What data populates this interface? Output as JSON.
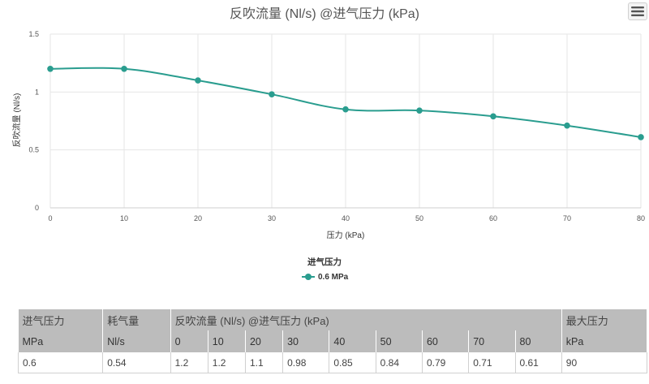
{
  "chart_data": {
    "type": "line",
    "title": "反吹流量 (Nl/s) @进气压力 (kPa)",
    "xlabel": "压力 (kPa)",
    "ylabel": "反吹流量 (Nl/s)",
    "x_ticks": [
      "0",
      "10",
      "20",
      "30",
      "40",
      "50",
      "60",
      "70",
      "80"
    ],
    "y_ticks": [
      "0",
      "0.5",
      "1",
      "1.5"
    ],
    "xlim": [
      0,
      80
    ],
    "ylim": [
      0,
      1.5
    ],
    "grid": true,
    "legend_title": "进气压力",
    "legend_position": "bottom-center",
    "series": [
      {
        "name": "0.6 MPa",
        "color": "#2a9d8f",
        "x": [
          0,
          10,
          20,
          30,
          40,
          50,
          60,
          70,
          80
        ],
        "values": [
          1.2,
          1.2,
          1.1,
          0.98,
          0.85,
          0.84,
          0.79,
          0.71,
          0.61
        ]
      }
    ]
  },
  "menu_icon": "hamburger-menu-icon",
  "table": {
    "header1": [
      "进气压力",
      "耗气量",
      "反吹流量 (Nl/s) @进气压力 (kPa)",
      "最大压力"
    ],
    "header2": [
      "MPa",
      "Nl/s",
      "0",
      "10",
      "20",
      "30",
      "40",
      "50",
      "60",
      "70",
      "80",
      "kPa"
    ],
    "row": [
      "0.6",
      "0.54",
      "1.2",
      "1.2",
      "1.1",
      "0.98",
      "0.85",
      "0.84",
      "0.79",
      "0.71",
      "0.61",
      "90"
    ]
  }
}
